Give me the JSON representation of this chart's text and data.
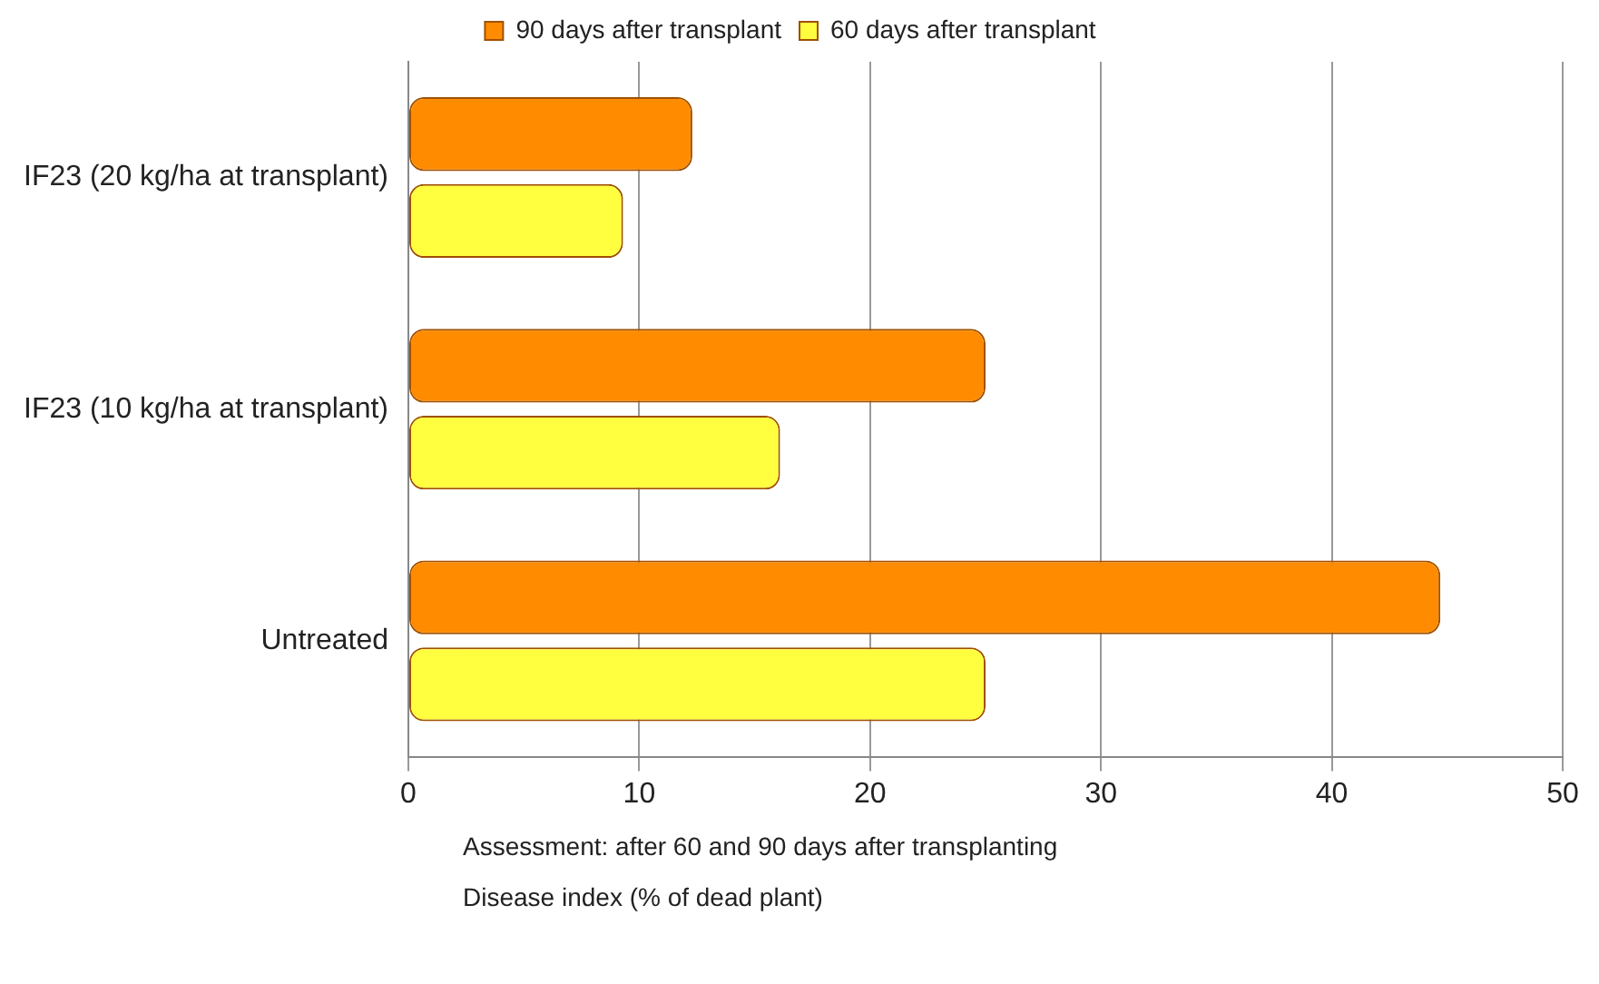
{
  "chart_data": {
    "type": "bar",
    "orientation": "horizontal",
    "categories": [
      "IF23 (20 kg/ha at transplant)",
      "IF23 (10 kg/ha at transplant)",
      "Untreated"
    ],
    "series": [
      {
        "name": "90 days after transplant",
        "color": "#ff8c00",
        "values": [
          12.3,
          25,
          44.7
        ]
      },
      {
        "name": "60 days after transplant",
        "color": "#ffff40",
        "values": [
          9.3,
          16.1,
          25
        ]
      }
    ],
    "xlim": [
      0,
      50
    ],
    "xticks": [
      0,
      10,
      20,
      30,
      40,
      50
    ],
    "grid": "x",
    "legend": "top",
    "xlabel": "Disease index (% of dead plant)",
    "annotations": [
      "Assessment: after 60 and 90 days after transplanting"
    ]
  }
}
